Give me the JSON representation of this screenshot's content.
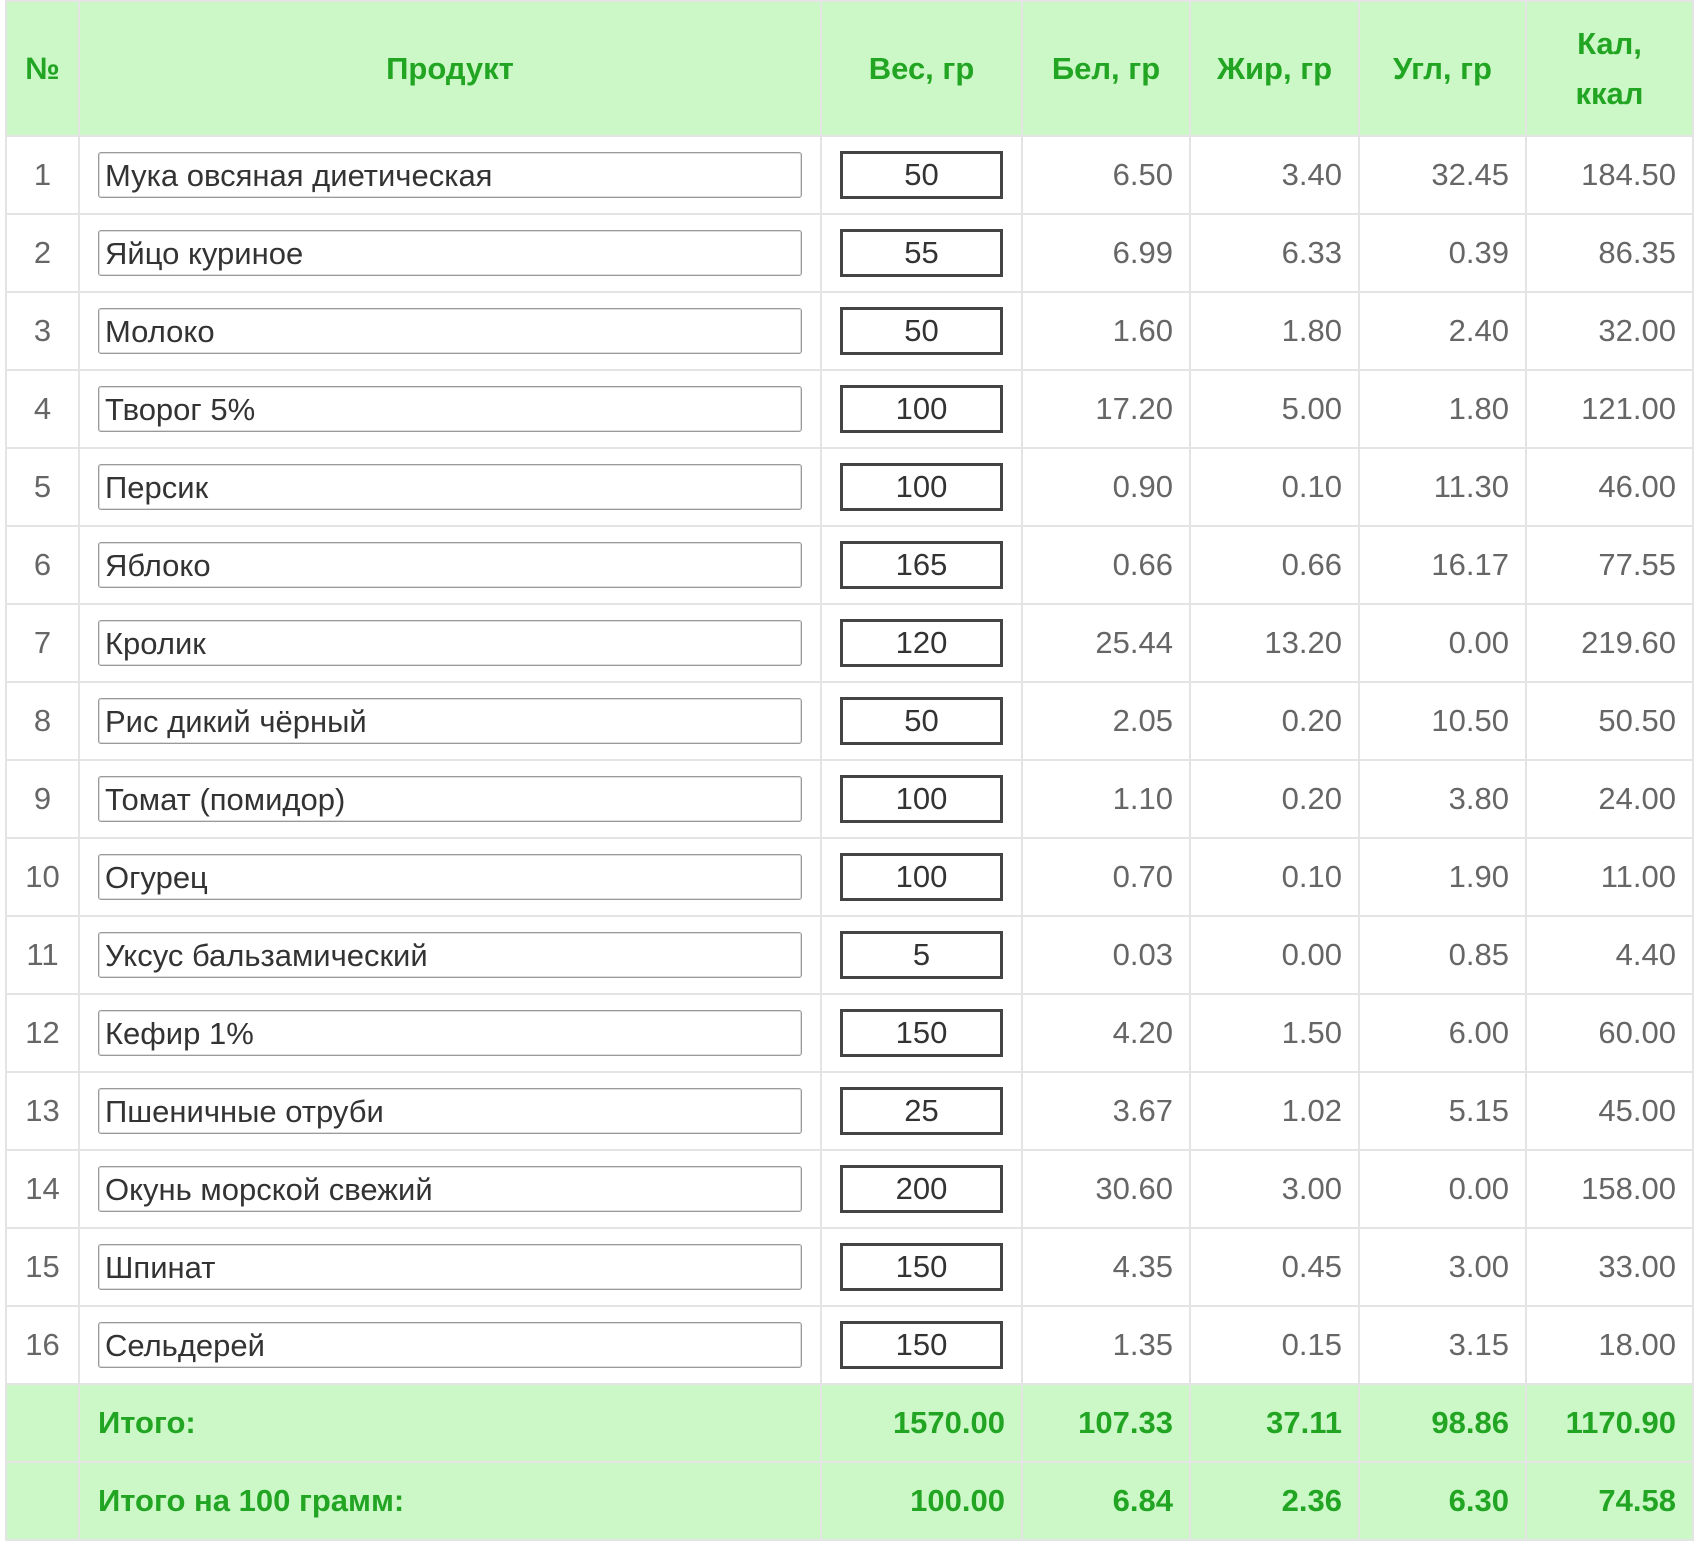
{
  "header": [
    "№",
    "Продукт",
    "Вес, гр",
    "Бел, гр",
    "Жир, гр",
    "Угл, гр",
    "Кал, ккал"
  ],
  "rows": [
    [
      "1",
      "Мука овсяная диетическая",
      "50",
      "6.50",
      "3.40",
      "32.45",
      "184.50"
    ],
    [
      "2",
      "Яйцо куриное",
      "55",
      "6.99",
      "6.33",
      "0.39",
      "86.35"
    ],
    [
      "3",
      "Молоко",
      "50",
      "1.60",
      "1.80",
      "2.40",
      "32.00"
    ],
    [
      "4",
      "Творог 5%",
      "100",
      "17.20",
      "5.00",
      "1.80",
      "121.00"
    ],
    [
      "5",
      "Персик",
      "100",
      "0.90",
      "0.10",
      "11.30",
      "46.00"
    ],
    [
      "6",
      "Яблоко",
      "165",
      "0.66",
      "0.66",
      "16.17",
      "77.55"
    ],
    [
      "7",
      "Кролик",
      "120",
      "25.44",
      "13.20",
      "0.00",
      "219.60"
    ],
    [
      "8",
      "Рис дикий чёрный",
      "50",
      "2.05",
      "0.20",
      "10.50",
      "50.50"
    ],
    [
      "9",
      "Томат (помидор)",
      "100",
      "1.10",
      "0.20",
      "3.80",
      "24.00"
    ],
    [
      "10",
      "Огурец",
      "100",
      "0.70",
      "0.10",
      "1.90",
      "11.00"
    ],
    [
      "11",
      "Уксус бальзамический",
      "5",
      "0.03",
      "0.00",
      "0.85",
      "4.40"
    ],
    [
      "12",
      "Кефир 1%",
      "150",
      "4.20",
      "1.50",
      "6.00",
      "60.00"
    ],
    [
      "13",
      "Пшеничные отруби",
      "25",
      "3.67",
      "1.02",
      "5.15",
      "45.00"
    ],
    [
      "14",
      "Окунь морской свежий",
      "200",
      "30.60",
      "3.00",
      "0.00",
      "158.00"
    ],
    [
      "15",
      "Шпинат",
      "150",
      "4.35",
      "0.45",
      "3.00",
      "33.00"
    ],
    [
      "16",
      "Сельдерей",
      "150",
      "1.35",
      "0.15",
      "3.15",
      "18.00"
    ]
  ],
  "totals": [
    [
      "Итого:",
      "1570.00",
      "107.33",
      "37.11",
      "98.86",
      "1170.90"
    ],
    [
      "Итого на 100 грамм:",
      "100.00",
      "6.84",
      "2.36",
      "6.30",
      "74.58"
    ]
  ]
}
